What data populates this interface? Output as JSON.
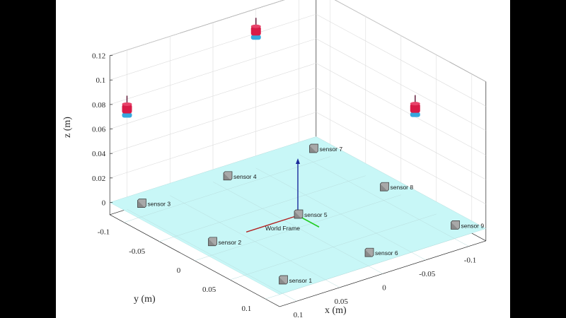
{
  "chart_data": {
    "type": "scatter",
    "title": "",
    "xlabel": "x (m)",
    "ylabel": "y (m)",
    "zlabel": "z (m)",
    "grid": true,
    "xlim": [
      -0.12,
      0.12
    ],
    "ylim": [
      -0.12,
      0.12
    ],
    "zlim": [
      -0.01,
      0.12
    ],
    "x_ticks": [
      "-0.1",
      "-0.05",
      "0",
      "0.05",
      "0.1"
    ],
    "y_ticks": [
      "-0.1",
      "-0.05",
      "0",
      "0.05",
      "0.1"
    ],
    "z_ticks": [
      "0",
      "0.02",
      "0.04",
      "0.06",
      "0.08",
      "0.1",
      "0.12"
    ],
    "frame_label": "World Frame",
    "sensors": [
      {
        "name": "sensor 1",
        "x": 0.1,
        "y": 0.1,
        "z": 0
      },
      {
        "name": "sensor 2",
        "x": 0.1,
        "y": 0,
        "z": 0
      },
      {
        "name": "sensor 3",
        "x": 0.1,
        "y": -0.1,
        "z": 0
      },
      {
        "name": "sensor 4",
        "x": 0,
        "y": -0.1,
        "z": 0
      },
      {
        "name": "sensor 5",
        "x": 0,
        "y": 0,
        "z": 0
      },
      {
        "name": "sensor 6",
        "x": 0,
        "y": 0.1,
        "z": 0
      },
      {
        "name": "sensor 7",
        "x": -0.1,
        "y": -0.1,
        "z": 0
      },
      {
        "name": "sensor 8",
        "x": -0.1,
        "y": 0,
        "z": 0
      },
      {
        "name": "sensor 9",
        "x": -0.1,
        "y": 0.1,
        "z": 0
      }
    ],
    "magnets": [
      {
        "x": 0.1,
        "y": -0.12,
        "z": 0.07
      },
      {
        "x": -0.05,
        "y": -0.12,
        "z": 0.1
      },
      {
        "x": -0.12,
        "y": 0.02,
        "z": 0.065
      }
    ],
    "colors": {
      "plane": "#c8f7f7",
      "sensor_box": "#8a8a8a",
      "magnet_top": "#d81b47",
      "magnet_bottom": "#36a8de",
      "axis_x": "#b22222",
      "axis_y": "#22cc22",
      "axis_z": "#1a2a9a"
    }
  }
}
